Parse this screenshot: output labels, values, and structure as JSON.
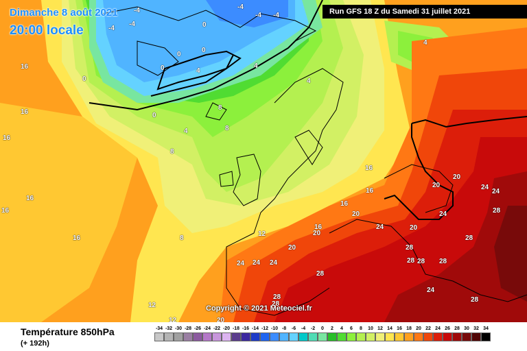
{
  "header": {
    "date": "Dimanche 8 août 2021",
    "time": "20:00 locale",
    "run": "Run GFS 18 Z du Samedi 31 juillet 2021"
  },
  "copyright": "Copyright © 2021 Meteociel.fr",
  "footer": {
    "title": "Température 850hPa",
    "subtitle": "(+ 192h)"
  },
  "legend": [
    {
      "value": "-34",
      "color": "#c8c8c8"
    },
    {
      "value": "-32",
      "color": "#b4b4b4"
    },
    {
      "value": "-30",
      "color": "#a0a0a0"
    },
    {
      "value": "-28",
      "color": "#9a7fa3"
    },
    {
      "value": "-26",
      "color": "#8c5aa0"
    },
    {
      "value": "-24",
      "color": "#b478c8"
    },
    {
      "value": "-22",
      "color": "#c896dc"
    },
    {
      "value": "-20",
      "color": "#dcb4f0"
    },
    {
      "value": "-18",
      "color": "#5a3c8c"
    },
    {
      "value": "-16",
      "color": "#3c28a0"
    },
    {
      "value": "-14",
      "color": "#1e3cc8"
    },
    {
      "value": "-12",
      "color": "#1e64f0"
    },
    {
      "value": "-10",
      "color": "#3c8cff"
    },
    {
      "value": "-8",
      "color": "#50b4ff"
    },
    {
      "value": "-6",
      "color": "#64d2ff"
    },
    {
      "value": "-4",
      "color": "#00c8c8"
    },
    {
      "value": "-2",
      "color": "#50dcb4"
    },
    {
      "value": "0",
      "color": "#78e6a0"
    },
    {
      "value": "2",
      "color": "#28be28"
    },
    {
      "value": "4",
      "color": "#50dc32"
    },
    {
      "value": "6",
      "color": "#8cf03c"
    },
    {
      "value": "8",
      "color": "#b4f050"
    },
    {
      "value": "10",
      "color": "#d2f064"
    },
    {
      "value": "12",
      "color": "#f0f078"
    },
    {
      "value": "14",
      "color": "#ffe650"
    },
    {
      "value": "16",
      "color": "#ffc832"
    },
    {
      "value": "18",
      "color": "#ffa01e"
    },
    {
      "value": "20",
      "color": "#ff7814"
    },
    {
      "value": "22",
      "color": "#f0460a"
    },
    {
      "value": "24",
      "color": "#dc1e0a"
    },
    {
      "value": "26",
      "color": "#c80a0a"
    },
    {
      "value": "28",
      "color": "#a00a0a"
    },
    {
      "value": "30",
      "color": "#780a0a"
    },
    {
      "value": "32",
      "color": "#500505"
    },
    {
      "value": "34",
      "color": "#000000"
    }
  ],
  "map_labels": [
    {
      "text": "-4"
    },
    {
      "text": "-4"
    },
    {
      "text": "-4"
    },
    {
      "text": "-4"
    },
    {
      "text": "-4"
    },
    {
      "text": "-4"
    },
    {
      "text": "0"
    },
    {
      "text": "0"
    },
    {
      "text": "0"
    },
    {
      "text": "0"
    },
    {
      "text": "0"
    },
    {
      "text": "0"
    },
    {
      "text": "4"
    },
    {
      "text": "4"
    },
    {
      "text": "4"
    },
    {
      "text": "4"
    },
    {
      "text": "4"
    },
    {
      "text": "8"
    },
    {
      "text": "8"
    },
    {
      "text": "8"
    },
    {
      "text": "8"
    },
    {
      "text": "12"
    },
    {
      "text": "12"
    },
    {
      "text": "12"
    },
    {
      "text": "16"
    },
    {
      "text": "16"
    },
    {
      "text": "16"
    },
    {
      "text": "16"
    },
    {
      "text": "16"
    },
    {
      "text": "16"
    },
    {
      "text": "16"
    },
    {
      "text": "16"
    },
    {
      "text": "16"
    },
    {
      "text": "16"
    },
    {
      "text": "20"
    },
    {
      "text": "20"
    },
    {
      "text": "20"
    },
    {
      "text": "20"
    },
    {
      "text": "20"
    },
    {
      "text": "20"
    },
    {
      "text": "20"
    },
    {
      "text": "24"
    },
    {
      "text": "24"
    },
    {
      "text": "24"
    },
    {
      "text": "24"
    },
    {
      "text": "24"
    },
    {
      "text": "24"
    },
    {
      "text": "24"
    },
    {
      "text": "24"
    },
    {
      "text": "28"
    },
    {
      "text": "28"
    },
    {
      "text": "28"
    },
    {
      "text": "28"
    },
    {
      "text": "28"
    },
    {
      "text": "28"
    },
    {
      "text": "28"
    },
    {
      "text": "28"
    },
    {
      "text": "28"
    },
    {
      "text": "28"
    }
  ]
}
